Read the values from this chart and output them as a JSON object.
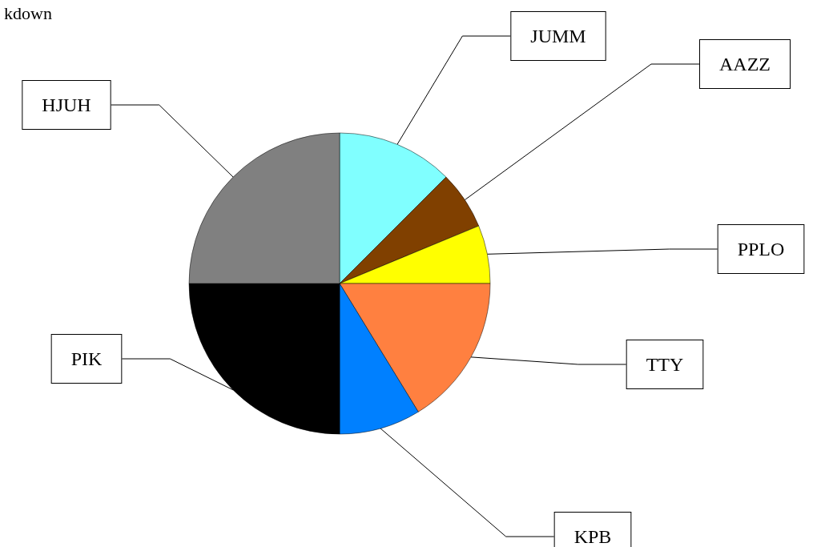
{
  "chart_data": {
    "type": "pie",
    "title": "kdown",
    "categories": [
      "JUMM",
      "AAZZ",
      "PPLO",
      "TTY",
      "KPB",
      "PIK",
      "HJUH"
    ],
    "values": [
      12.5,
      6.25,
      6.25,
      16.25,
      8.75,
      25,
      25
    ],
    "colors": [
      "#80ffff",
      "#804000",
      "#ffff00",
      "#ff8040",
      "#0080ff",
      "#000000",
      "#808080"
    ]
  }
}
